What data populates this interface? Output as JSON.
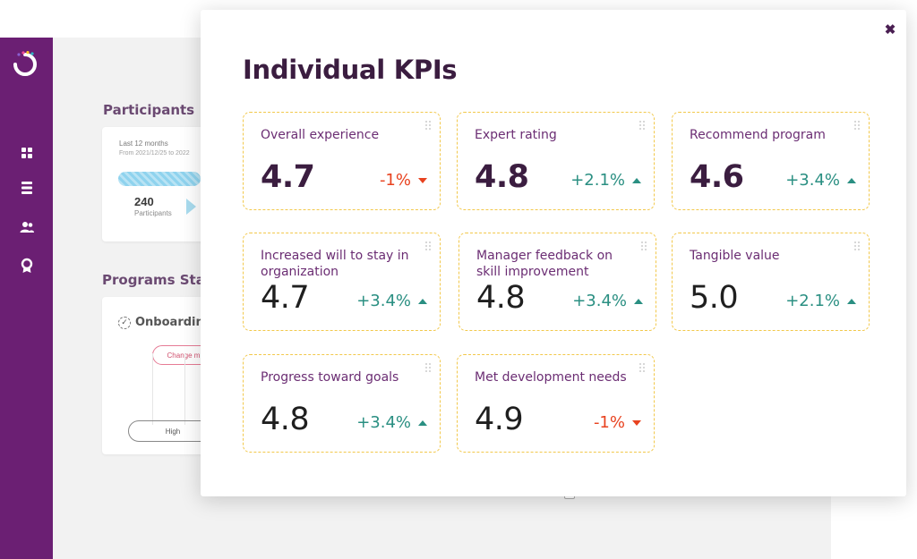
{
  "background": {
    "participants_title": "Participants",
    "period_label": "Last 12 months",
    "period_range": "From 2021/12/25 to 2022",
    "participant_count": "240",
    "participant_count_label": "Participants",
    "programs_status_title": "Programs Statu",
    "onboarding_label": "Onboarding",
    "change_label": "Change m",
    "high_label": "High",
    "sidebar_icons": [
      "dashboard-icon",
      "list-icon",
      "users-icon",
      "award-icon"
    ]
  },
  "modal": {
    "title": "Individual KPIs",
    "close_glyph": "✖",
    "kpis": [
      {
        "label": "Overall experience",
        "value": "4.7",
        "change": "-1%",
        "trend": "down"
      },
      {
        "label": "Expert rating",
        "value": "4.8",
        "change": "+2.1%",
        "trend": "up"
      },
      {
        "label": "Recommend program",
        "value": "4.6",
        "change": "+3.4%",
        "trend": "up"
      },
      {
        "label": "Increased will to stay in organization",
        "value": "4.7",
        "change": "+3.4%",
        "trend": "up"
      },
      {
        "label": "Manager feedback on skill improvement",
        "value": "4.8",
        "change": "+3.4%",
        "trend": "up"
      },
      {
        "label": "Tangible value",
        "value": "5.0",
        "change": "+2.1%",
        "trend": "up"
      },
      {
        "label": "Progress toward goals",
        "value": "4.8",
        "change": "+3.4%",
        "trend": "up"
      },
      {
        "label": "Met development needs",
        "value": "4.9",
        "change": "-1%",
        "trend": "down"
      }
    ]
  },
  "colors": {
    "sidebar": "#6b1f73",
    "title": "#3b1d40",
    "label": "#6b2d73",
    "positive": "#2a8f82",
    "negative": "#e8421f",
    "card_border": "#f2c84b"
  }
}
